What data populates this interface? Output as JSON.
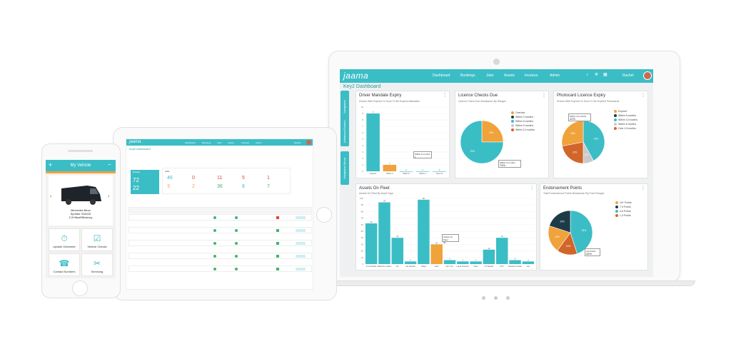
{
  "laptop": {
    "logo": "jaama",
    "nav": [
      "Dashboard",
      "Bookings",
      "Jobs",
      "Assets",
      "Invoices",
      "Admin"
    ],
    "user": "Rachel",
    "subtitle": "Key2 Dashboard",
    "side_tabs": [
      "Navigation",
      "Advanced Search",
      "Navigation Menu"
    ],
    "cards": {
      "driver_mandate": {
        "title": "Driver Mandate Expiry",
        "subtitle": "Drivers With Expired Or Soon To Be Expired Mandates",
        "callout": "Within 6 months 1",
        "chart_data": {
          "type": "bar",
          "categories": [
            "Expired",
            "Within 3",
            "Within 6",
            "Within 1",
            "Over 12"
          ],
          "values": [
            9,
            1,
            0,
            0,
            0
          ],
          "ylim": [
            0,
            10
          ],
          "yticks": [
            "0",
            "1",
            "2",
            "3",
            "4",
            "5",
            "6",
            "7",
            "8",
            "9",
            "10"
          ],
          "bar_colors": [
            "#3bbdc6",
            "#f0a23b",
            "#3bbdc6",
            "#3bbdc6",
            "#3bbdc6"
          ]
        }
      },
      "licence_checks": {
        "title": "Licence Checks Due",
        "subtitle": "Licence Check Due Breakdown By Ranges",
        "callout_label": "Within 6 months",
        "callout_value": "75%",
        "legend": [
          {
            "label": "Overdue",
            "color": "#f0a23b"
          },
          {
            "label": "Within 3 months",
            "color": "#1d3b47"
          },
          {
            "label": "Within 6 months",
            "color": "#3bbdc6"
          },
          {
            "label": "Within 9 months",
            "color": "#c9c9c9"
          },
          {
            "label": "Within 12 months",
            "color": "#d2652a"
          }
        ],
        "chart_data": {
          "type": "pie",
          "labels": [
            "Overdue",
            "Within 6 months"
          ],
          "values": [
            25,
            75
          ],
          "colors": [
            "#f0a23b",
            "#3bbdc6"
          ],
          "slice_labels": [
            "25%",
            "75%"
          ]
        }
      },
      "photocard": {
        "title": "Photocard Licence Expiry",
        "subtitle": "Drivers With Expired Or Soon To Be Expired Photocards",
        "callout_label": "Within 12 months",
        "callout_value": "42%",
        "legend": [
          {
            "label": "Expired",
            "color": "#f0a23b"
          },
          {
            "label": "Within 6 months",
            "color": "#1d3b47"
          },
          {
            "label": "Within 12 months",
            "color": "#3bbdc6"
          },
          {
            "label": "Within 6 months",
            "color": "#c9c9c9"
          },
          {
            "label": "Over 12 months",
            "color": "#d2652a"
          }
        ],
        "chart_data": {
          "type": "pie",
          "labels": [
            "Within 12 months",
            "Within 6 months",
            "Over 12 months",
            "Expired"
          ],
          "values": [
            42,
            8,
            22,
            28
          ],
          "colors": [
            "#3bbdc6",
            "#c9c9c9",
            "#d2652a",
            "#f0a23b"
          ],
          "slice_labels": [
            "42%",
            "8%",
            "22%",
            "28%"
          ]
        }
      },
      "assets": {
        "title": "Assets On Fleet",
        "subtitle": "Assets On Fleet By Asset Type",
        "callout_label": "Assets on Fleet",
        "callout_value": "30",
        "chart_data": {
          "type": "bar",
          "categories": [
            "4x4 & Estate",
            "Backhoe Loader",
            "Car",
            "Car (Diesel)",
            "Fridge",
            "HGV",
            "HGV Cor.",
            "Large Sweeper",
            "Plant",
            "On Wheels",
            "RCV",
            "Standard Loader",
            "Van"
          ],
          "values": [
            62,
            94,
            40,
            4,
            98,
            30,
            6,
            4,
            4,
            22,
            40,
            6,
            4
          ],
          "ylim": [
            0,
            100
          ],
          "yticks": [
            "0",
            "10",
            "20",
            "30",
            "40",
            "50",
            "60",
            "70",
            "80",
            "90",
            "100"
          ],
          "highlight_index": 5
        }
      },
      "endorsement": {
        "title": "Endorsement Points",
        "subtitle": "Total Endorsement Points Breakdown By Point Ranges",
        "callout_label": "4-6 Points",
        "callout_value": "45%",
        "legend": [
          {
            "label": "10+ Points",
            "color": "#f0a23b"
          },
          {
            "label": "7-9 Points",
            "color": "#1d3b47"
          },
          {
            "label": "4-6 Points",
            "color": "#3bbdc6"
          },
          {
            "label": "1-3 Points",
            "color": "#d2652a"
          }
        ],
        "chart_data": {
          "type": "pie",
          "labels": [
            "4-6 Points",
            "1-3 Points",
            "10+ Points",
            "7-9 Points"
          ],
          "values": [
            45,
            15,
            20,
            20
          ],
          "colors": [
            "#3bbdc6",
            "#d2652a",
            "#f0a23b",
            "#1d3b47"
          ],
          "slice_labels": [
            "45%",
            "15%",
            "20%",
            "20%"
          ]
        }
      }
    }
  },
  "tablet": {
    "logo": "jaama",
    "nav": [
      "Dashboard",
      "Bookings",
      "Jobs",
      "Assets",
      "Invoices",
      "Admin"
    ],
    "user": "Rachel",
    "subtitle": "Key2 Dashboard",
    "tile_title": "Bookings",
    "tile_a": "72",
    "tile_b": "22",
    "stats_title": "Jobs",
    "stats": [
      {
        "value": "46",
        "color": "#3bbdc6"
      },
      {
        "value": "0",
        "color": "#e0463c"
      },
      {
        "value": "11",
        "color": "#e0463c"
      },
      {
        "value": "5",
        "color": "#e0463c"
      },
      {
        "value": "1",
        "color": "#e0463c"
      },
      {
        "value": "3",
        "color": "#f0a23b"
      },
      {
        "value": "2",
        "color": "#f0a23b"
      },
      {
        "value": "36",
        "color": "#44b36f"
      },
      {
        "value": "8",
        "color": "#3bbdc6"
      },
      {
        "value": "7",
        "color": "#44b36f"
      }
    ]
  },
  "phone": {
    "title": "My Vehicle",
    "vehicle_name": "Mercedes Benz",
    "vehicle_model": "Sprinter 316CDI",
    "vehicle_spec": "2.2t BlueEfficiency",
    "tiles": [
      {
        "label": "Update Odometer",
        "icon": "⏱"
      },
      {
        "label": "Vehicle Checks",
        "icon": "☑"
      },
      {
        "label": "Contact Numbers",
        "icon": "☎"
      },
      {
        "label": "Servicing",
        "icon": "✂"
      }
    ]
  }
}
